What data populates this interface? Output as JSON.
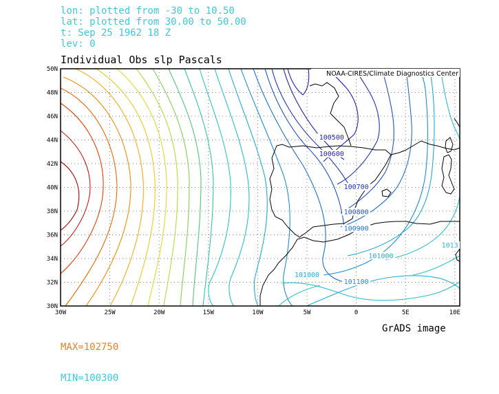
{
  "header": {
    "lon_line": "lon: plotted from -30 to 10.50",
    "lat_line": "lat: plotted from 30.00 to 50.00",
    "time_line": "t: Sep 25 1962 18 Z",
    "lev_line": "lev: 0"
  },
  "title": "Individual Obs slp Pascals",
  "credit": "NOAA-CIRES/Climate Diagnostics Center",
  "footer": {
    "max_label": "MAX=102750",
    "min_label": "MIN=100300",
    "grads_label": "GrADS image"
  },
  "colors": {
    "header": "#3cc8dc",
    "max": "#f08020",
    "min": "#3cc8dc",
    "coast": "#000000",
    "grid": "#7f7f7f"
  },
  "axes": {
    "x_ticks": [
      "30W",
      "25W",
      "20W",
      "15W",
      "10W",
      "5W",
      "0",
      "5E",
      "10E"
    ],
    "y_ticks": [
      "30N",
      "32N",
      "34N",
      "36N",
      "38N",
      "40N",
      "42N",
      "44N",
      "46N",
      "48N",
      "50N"
    ]
  },
  "chart_data": {
    "type": "contour",
    "field": "sea level pressure (Pa)",
    "lon_range": [
      -30,
      10.5
    ],
    "lat_range": [
      30,
      50
    ],
    "max": 102750,
    "min": 100300,
    "contour_labels": [
      {
        "text": "100500",
        "lon": -2.5,
        "lat": 44.1
      },
      {
        "text": "100600",
        "lon": -2.5,
        "lat": 42.7
      },
      {
        "text": "100700",
        "lon": 0.0,
        "lat": 39.9
      },
      {
        "text": "100800",
        "lon": 0.0,
        "lat": 37.8
      },
      {
        "text": "100900",
        "lon": 0.0,
        "lat": 36.4
      },
      {
        "text": "101000",
        "lon": 2.5,
        "lat": 34.1
      },
      {
        "text": "101100",
        "lon": 0.0,
        "lat": 31.9
      },
      {
        "text": "101000",
        "lon": -5.0,
        "lat": 32.5
      },
      {
        "text": "1013",
        "lon": 9.5,
        "lat": 35.0
      }
    ]
  }
}
